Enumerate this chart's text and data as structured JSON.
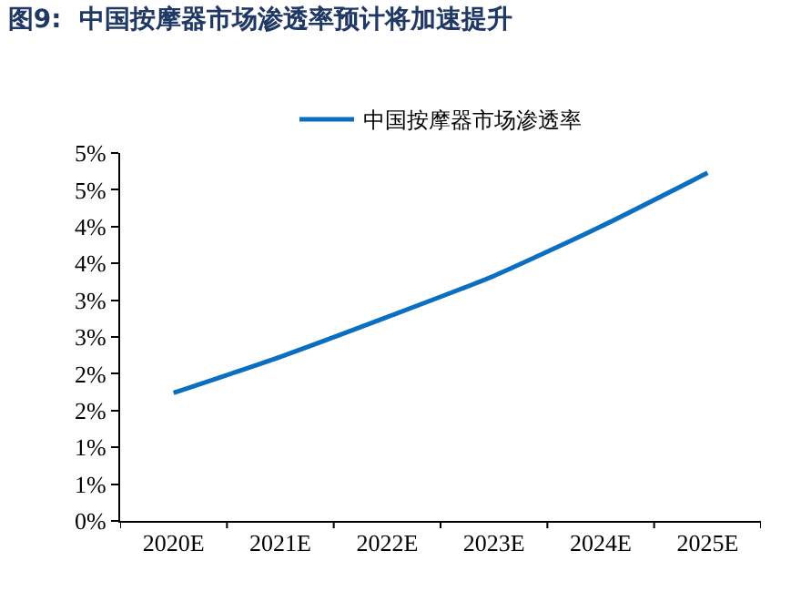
{
  "chart_data": {
    "type": "line",
    "title": "图9:  中国按摩器市场渗透率预计将加速提升",
    "categories": [
      "2020E",
      "2021E",
      "2022E",
      "2023E",
      "2024E",
      "2025E"
    ],
    "series": [
      {
        "name": "中国按摩器市场渗透率",
        "color": "#0b6fc1",
        "values": [
          1.74,
          2.23,
          2.77,
          3.33,
          4.0,
          4.73
        ]
      }
    ],
    "ylim": [
      0,
      5
    ],
    "yticks": [
      {
        "value": 0,
        "label": "0%"
      },
      {
        "value": 0.5,
        "label": "1%"
      },
      {
        "value": 1,
        "label": "1%"
      },
      {
        "value": 1.5,
        "label": "2%"
      },
      {
        "value": 2,
        "label": "2%"
      },
      {
        "value": 2.5,
        "label": "3%"
      },
      {
        "value": 3,
        "label": "3%"
      },
      {
        "value": 3.5,
        "label": "4%"
      },
      {
        "value": 4,
        "label": "4%"
      },
      {
        "value": 4.5,
        "label": "5%"
      },
      {
        "value": 5,
        "label": "5%"
      }
    ],
    "grid": false,
    "legend": "top",
    "marker": "none",
    "line_style": "solid"
  }
}
